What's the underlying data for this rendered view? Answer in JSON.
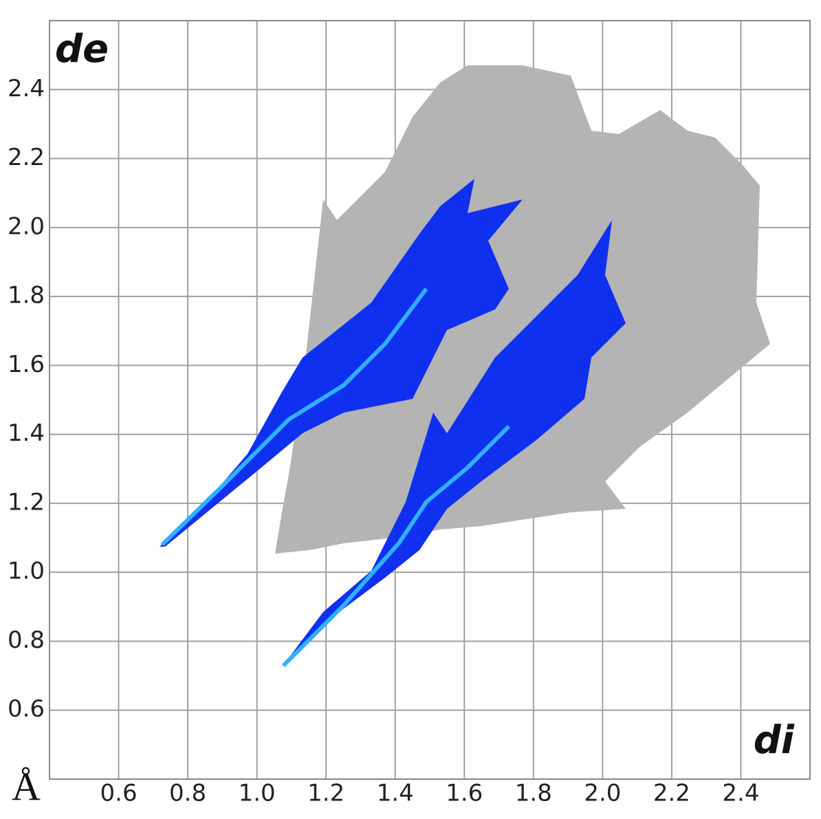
{
  "chart_data": {
    "type": "scatter",
    "y_axis_label": "de",
    "x_axis_label": "di",
    "unit_label": "Å",
    "xlim": [
      0.4,
      2.6
    ],
    "ylim": [
      0.4,
      2.6
    ],
    "xticks": [
      0.6,
      0.8,
      {
        "value": 1,
        "label": "1.0"
      },
      1.2,
      1.4,
      1.6,
      1.8,
      {
        "value": 2,
        "label": "2.0"
      },
      2.2,
      2.4
    ],
    "yticks": [
      0.6,
      0.8,
      {
        "value": 1,
        "label": "1.0"
      },
      1.2,
      1.4,
      1.6,
      1.8,
      {
        "value": 2,
        "label": "2.0"
      },
      2.2,
      2.4
    ],
    "grid": true
  }
}
